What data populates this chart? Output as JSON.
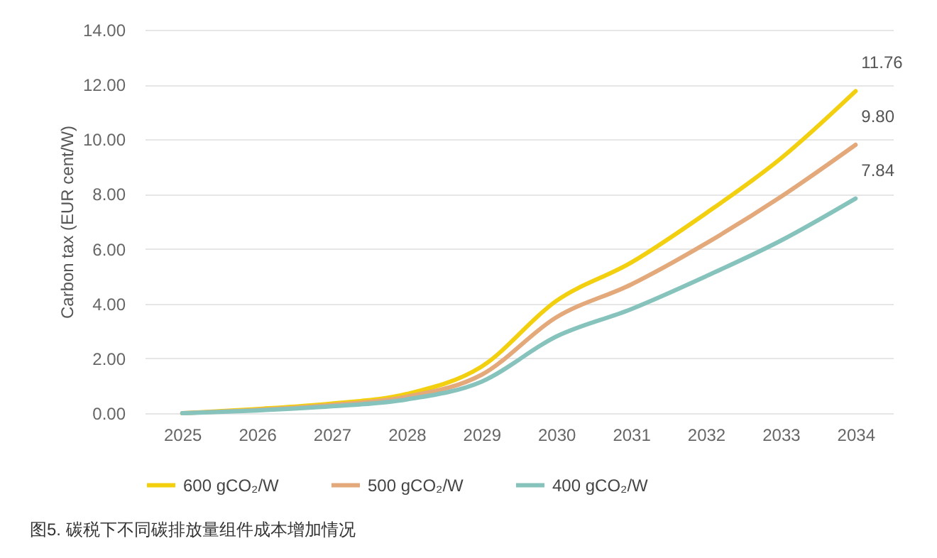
{
  "chart_data": {
    "type": "line",
    "ylabel": "Carbon tax (EUR cent/W)",
    "annotations": [
      "图5. 碳税下不同碳排放量组件成本增加情况"
    ],
    "categories": [
      "2025",
      "2026",
      "2027",
      "2028",
      "2029",
      "2030",
      "2031",
      "2032",
      "2033",
      "2034"
    ],
    "series": [
      {
        "name": "600 gCO₂/W",
        "color": "#f2d00f",
        "values": [
          0,
          0.15,
          0.35,
          0.7,
          1.7,
          4.1,
          5.5,
          7.3,
          9.3,
          11.76
        ],
        "value_labels": [
          null,
          null,
          null,
          null,
          null,
          null,
          null,
          null,
          null,
          "11.76"
        ]
      },
      {
        "name": "500 gCO₂/W",
        "color": "#e3a97a",
        "values": [
          0,
          0.12,
          0.3,
          0.6,
          1.4,
          3.5,
          4.7,
          6.2,
          7.9,
          9.8
        ],
        "value_labels": [
          null,
          null,
          null,
          null,
          null,
          null,
          null,
          null,
          null,
          "9.80"
        ]
      },
      {
        "name": "400 gCO₂/W",
        "color": "#86c3bc",
        "values": [
          0,
          0.1,
          0.25,
          0.5,
          1.15,
          2.8,
          3.8,
          5.0,
          6.3,
          7.84
        ],
        "value_labels": [
          null,
          null,
          null,
          null,
          null,
          null,
          null,
          null,
          null,
          "7.84"
        ]
      }
    ],
    "ylim": [
      0,
      14
    ],
    "yticks": [
      {
        "value": 0,
        "label": "0.00"
      },
      {
        "value": 2,
        "label": "2.00"
      },
      {
        "value": 4,
        "label": "4.00"
      },
      {
        "value": 6,
        "label": "6.00"
      },
      {
        "value": 8,
        "label": "8.00"
      },
      {
        "value": 10,
        "label": "10.00"
      },
      {
        "value": 12,
        "label": "12.00"
      },
      {
        "value": 14,
        "label": "14.00"
      }
    ],
    "grid": "y",
    "legend": "bottom",
    "marker": "none",
    "line_style": "solid"
  }
}
